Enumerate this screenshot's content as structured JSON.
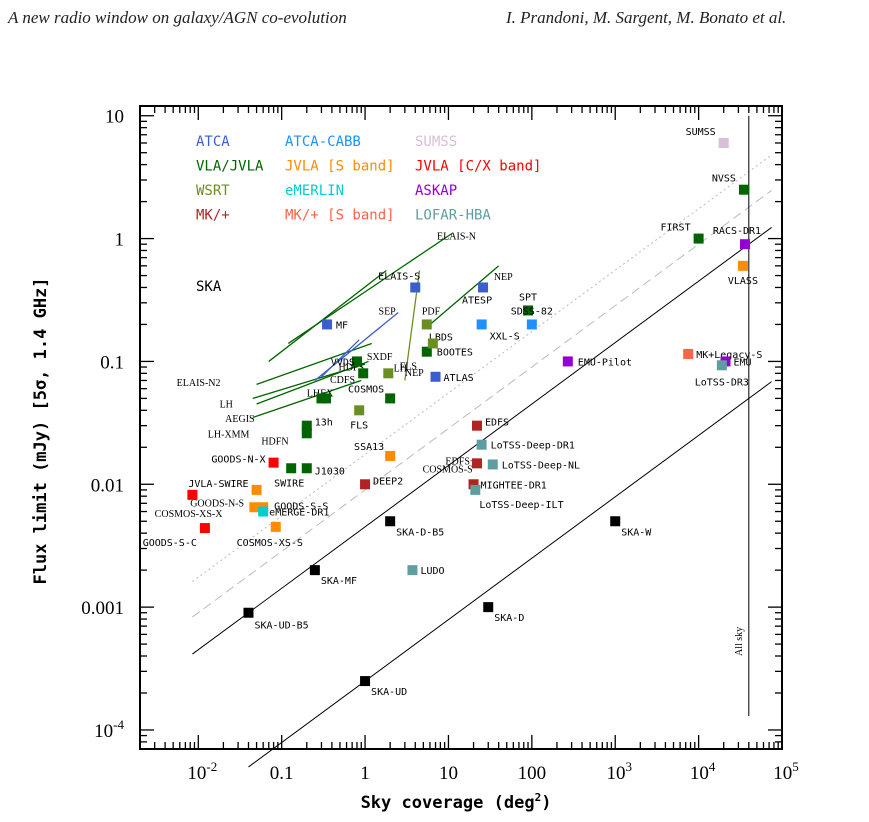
{
  "header": {
    "left": "A new radio window on galaxy/AGN co-evolution",
    "right": "I. Prandoni, M. Sargent, M. Bonato et al."
  },
  "chart_data": {
    "type": "scatter",
    "xlabel": "Sky coverage (deg",
    "xlabel_sup": "2",
    "xlabel_end": ")",
    "ylabel": "Flux limit (mJy) [5σ, 1.4 GHz]",
    "x_log": true,
    "y_log": true,
    "xlim": [
      0.002,
      100000
    ],
    "ylim": [
      7e-05,
      12
    ],
    "x_ticks": [
      {
        "v": 0.01,
        "b": "10",
        "e": "-2"
      },
      {
        "v": 0.1,
        "b": "0.1",
        "e": ""
      },
      {
        "v": 1,
        "b": "1",
        "e": ""
      },
      {
        "v": 10,
        "b": "10",
        "e": ""
      },
      {
        "v": 100,
        "b": "100",
        "e": ""
      },
      {
        "v": 1000,
        "b": "10",
        "e": "3"
      },
      {
        "v": 10000,
        "b": "10",
        "e": "4"
      },
      {
        "v": 100000,
        "b": "10",
        "e": "5"
      }
    ],
    "y_ticks": [
      {
        "v": 0.0001,
        "b": "10",
        "e": "-4"
      },
      {
        "v": 0.001,
        "b": "0.001",
        "e": ""
      },
      {
        "v": 0.01,
        "b": "0.01",
        "e": ""
      },
      {
        "v": 0.1,
        "b": "0.1",
        "e": ""
      },
      {
        "v": 1,
        "b": "1",
        "e": ""
      },
      {
        "v": 10,
        "b": "10",
        "e": ""
      }
    ],
    "legend": [
      {
        "name": "ATCA",
        "color": "#3a5fcd"
      },
      {
        "name": "ATCA-CABB",
        "color": "#1e90ff"
      },
      {
        "name": "SUMSS",
        "color": "#d8bfd8"
      },
      {
        "name": "VLA/JVLA",
        "color": "#006400"
      },
      {
        "name": "JVLA [S band]",
        "color": "#ff8c00"
      },
      {
        "name": "JVLA [C/X band]",
        "color": "#ff0000"
      },
      {
        "name": "WSRT",
        "color": "#6b8e23"
      },
      {
        "name": "eMERLIN",
        "color": "#00ced1"
      },
      {
        "name": "ASKAP",
        "color": "#9400d3"
      },
      {
        "name": "MK/+",
        "color": "#b22222"
      },
      {
        "name": "MK/+ [S band]",
        "color": "#ff6347"
      },
      {
        "name": "LOFAR-HBA",
        "color": "#5f9ea0"
      },
      {
        "name": "SKA",
        "color": "#000000"
      }
    ],
    "points": [
      {
        "label": "SUMSS",
        "x": 20000,
        "y": 6,
        "c": "#d8bfd8"
      },
      {
        "label": "NVSS",
        "x": 35000,
        "y": 2.5,
        "c": "#006400"
      },
      {
        "label": "FIRST",
        "x": 10000,
        "y": 1,
        "c": "#006400"
      },
      {
        "label": "RACS-DR1",
        "x": 36000,
        "y": 0.9,
        "c": "#9400d3"
      },
      {
        "label": "VLASS",
        "x": 34000,
        "y": 0.6,
        "c": "#ff8c00"
      },
      {
        "label": "MK+Legacy-S",
        "x": 7500,
        "y": 0.115,
        "c": "#ff6347"
      },
      {
        "label": "EMU",
        "x": 21000,
        "y": 0.1,
        "c": "#9400d3"
      },
      {
        "label": "LoTSS-DR3",
        "x": 19000,
        "y": 0.093,
        "c": "#5f9ea0"
      },
      {
        "label": "EMU-Pilot",
        "x": 270,
        "y": 0.1,
        "c": "#9400d3"
      },
      {
        "label": "ELAIS-S",
        "x": 4,
        "y": 0.4,
        "c": "#3a5fcd"
      },
      {
        "label": "ATESP",
        "x": 26,
        "y": 0.4,
        "c": "#3a5fcd"
      },
      {
        "label": "MF",
        "x": 0.35,
        "y": 0.2,
        "c": "#3a5fcd"
      },
      {
        "label": "LBDS",
        "x": 5.5,
        "y": 0.2,
        "c": "#6b8e23"
      },
      {
        "label": "SPT",
        "x": 90,
        "y": 0.26,
        "c": "#006400"
      },
      {
        "label": "SDSS-82",
        "x": 100,
        "y": 0.2,
        "c": "#1e90ff"
      },
      {
        "label": "XXL-S",
        "x": 25,
        "y": 0.2,
        "c": "#1e90ff"
      },
      {
        "label": "BOOTES",
        "x": 5.5,
        "y": 0.12,
        "c": "#006400"
      },
      {
        "label": "",
        "x": 6.5,
        "y": 0.14,
        "c": "#6b8e23"
      },
      {
        "label": "ATLAS",
        "x": 7,
        "y": 0.075,
        "c": "#3a5fcd"
      },
      {
        "label": "VVDS",
        "x": 0.8,
        "y": 0.1,
        "c": "#006400"
      },
      {
        "label": "",
        "x": 0.95,
        "y": 0.08,
        "c": "#006400"
      },
      {
        "label": "",
        "x": 1.9,
        "y": 0.08,
        "c": "#6b8e23"
      },
      {
        "label": "",
        "x": 0.3,
        "y": 0.05,
        "c": "#006400"
      },
      {
        "label": "",
        "x": 0.34,
        "y": 0.05,
        "c": "#006400"
      },
      {
        "label": "COSMOS",
        "x": 2,
        "y": 0.05,
        "c": "#006400"
      },
      {
        "label": "FLS",
        "x": 0.85,
        "y": 0.04,
        "c": "#6b8e23"
      },
      {
        "label": "13h",
        "x": 0.2,
        "y": 0.03,
        "c": "#006400"
      },
      {
        "label": "",
        "x": 0.2,
        "y": 0.026,
        "c": "#006400"
      },
      {
        "label": "GOODS-N-X",
        "x": 0.08,
        "y": 0.015,
        "c": "#ff0000"
      },
      {
        "label": "SWIRE",
        "x": 0.13,
        "y": 0.0135,
        "c": "#006400"
      },
      {
        "label": "J1030",
        "x": 0.2,
        "y": 0.0135,
        "c": "#006400"
      },
      {
        "label": "SSA13",
        "x": 2,
        "y": 0.017,
        "c": "#ff8c00"
      },
      {
        "label": "JVLA-SWIRE",
        "x": 0.05,
        "y": 0.009,
        "c": "#ff8c00"
      },
      {
        "label": "",
        "x": 0.0085,
        "y": 0.0082,
        "c": "#ff0000"
      },
      {
        "label": "GOODS-S-S",
        "x": 0.06,
        "y": 0.0065,
        "c": "#ff8c00"
      },
      {
        "label": "",
        "x": 0.047,
        "y": 0.0065,
        "c": "#ff8c00"
      },
      {
        "label": "eMERGE-DR1",
        "x": 0.06,
        "y": 0.006,
        "c": "#00ced1"
      },
      {
        "label": "COSMOS-XS-S",
        "x": 0.085,
        "y": 0.0045,
        "c": "#ff8c00"
      },
      {
        "label": "GOODS-S-C",
        "x": 0.012,
        "y": 0.0044,
        "c": "#ff0000"
      },
      {
        "label": "DEEP2",
        "x": 1,
        "y": 0.01,
        "c": "#b22222"
      },
      {
        "label": "EDFS",
        "x": 22,
        "y": 0.03,
        "c": "#b22222"
      },
      {
        "label": "LoTSS-Deep-DR1",
        "x": 25,
        "y": 0.021,
        "c": "#5f9ea0"
      },
      {
        "label": "LoTSS-Deep-NL",
        "x": 34,
        "y": 0.0145,
        "c": "#5f9ea0"
      },
      {
        "label": "",
        "x": 22,
        "y": 0.0148,
        "c": "#b22222"
      },
      {
        "label": "MIGHTEE-DR1",
        "x": 20,
        "y": 0.01,
        "c": "#b22222"
      },
      {
        "label": "LoTSS-Deep-ILT",
        "x": 21,
        "y": 0.009,
        "c": "#5f9ea0"
      },
      {
        "label": "LUDO",
        "x": 3.7,
        "y": 0.002,
        "c": "#5f9ea0"
      },
      {
        "label": "SKA-UD-B5",
        "x": 0.04,
        "y": 0.0009,
        "c": "#000000"
      },
      {
        "label": "SKA-MF",
        "x": 0.25,
        "y": 0.002,
        "c": "#000000"
      },
      {
        "label": "SKA-D-B5",
        "x": 2,
        "y": 0.005,
        "c": "#000000"
      },
      {
        "label": "SKA-UD",
        "x": 1,
        "y": 0.00025,
        "c": "#000000"
      },
      {
        "label": "SKA-D",
        "x": 30,
        "y": 0.001,
        "c": "#000000"
      },
      {
        "label": "SKA-W",
        "x": 1000,
        "y": 0.005,
        "c": "#000000"
      }
    ],
    "line_labels": [
      {
        "text": "ELAIS-N"
      },
      {
        "text": "NEP"
      },
      {
        "text": "SEP"
      },
      {
        "text": "PDF"
      },
      {
        "text": "ELAIS-N2"
      },
      {
        "text": "LH"
      },
      {
        "text": "AEGIS"
      },
      {
        "text": "LH-XMM"
      },
      {
        "text": "HDFN"
      },
      {
        "text": "SXDF"
      },
      {
        "text": "HDFS"
      },
      {
        "text": "CDFS"
      },
      {
        "text": "LHEX"
      },
      {
        "text": "LH"
      },
      {
        "text": "FLS"
      },
      {
        "text": "NEP"
      },
      {
        "text": "EDFS+"
      },
      {
        "text": "COSMOS-S"
      },
      {
        "text": "GOODS-N-S"
      },
      {
        "text": "COSMOS-XS-X"
      }
    ],
    "annotation": "All sky",
    "all_sky_x": 40000
  }
}
